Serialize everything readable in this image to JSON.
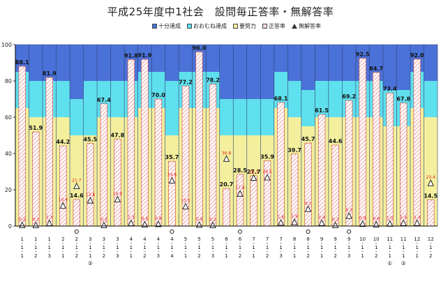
{
  "title": "平成25年度中1社会　設問毎正答率・無解答率",
  "legend": [
    {
      "label": "十分達成",
      "color": "#4a72d8",
      "kind": "box"
    },
    {
      "label": "おおむね達成",
      "color": "#5fe0ee",
      "kind": "box"
    },
    {
      "label": "要努力",
      "color": "#f3ef9d",
      "kind": "box"
    },
    {
      "label": "正答率",
      "color": "#f0c8c8",
      "kind": "hatch"
    },
    {
      "label": "無解答率",
      "color": "#333333",
      "kind": "triangle"
    }
  ],
  "chart_data": {
    "type": "bar",
    "ylim": [
      0,
      100
    ],
    "yticks": [
      0,
      20,
      40,
      60,
      80,
      100
    ],
    "categories": [
      {
        "lines": [
          "1",
          "1",
          "1"
        ],
        "circle": false,
        "sub": null
      },
      {
        "lines": [
          "1",
          "1",
          "2"
        ],
        "circle": false,
        "sub": null
      },
      {
        "lines": [
          "1",
          "1",
          "3"
        ],
        "circle": false,
        "sub": null
      },
      {
        "lines": [
          "2",
          "1",
          "1"
        ],
        "circle": false,
        "sub": null
      },
      {
        "lines": [
          "2",
          "1",
          "2"
        ],
        "circle": true,
        "sub": null
      },
      {
        "lines": [
          "3",
          "1",
          "1"
        ],
        "circle": false,
        "sub": "②"
      },
      {
        "lines": [
          "3",
          "1",
          "2"
        ],
        "circle": false,
        "sub": null
      },
      {
        "lines": [
          "3",
          "1",
          "3"
        ],
        "circle": false,
        "sub": null
      },
      {
        "lines": [
          "4",
          "1",
          "1"
        ],
        "circle": false,
        "sub": null
      },
      {
        "lines": [
          "4",
          "1",
          "2"
        ],
        "circle": false,
        "sub": null
      },
      {
        "lines": [
          "4",
          "1",
          "3"
        ],
        "circle": false,
        "sub": null
      },
      {
        "lines": [
          "4",
          "1",
          "4"
        ],
        "circle": true,
        "sub": null
      },
      {
        "lines": [
          "5",
          "1",
          "1"
        ],
        "circle": false,
        "sub": null
      },
      {
        "lines": [
          "5",
          "1",
          "2"
        ],
        "circle": false,
        "sub": null
      },
      {
        "lines": [
          "5",
          "1",
          "3"
        ],
        "circle": false,
        "sub": null
      },
      {
        "lines": [
          "6",
          "1",
          "1"
        ],
        "circle": false,
        "sub": null
      },
      {
        "lines": [
          "6",
          "1",
          "2"
        ],
        "circle": true,
        "sub": null
      },
      {
        "lines": [
          "7",
          "1",
          "1"
        ],
        "circle": false,
        "sub": null
      },
      {
        "lines": [
          "7",
          "1",
          "2"
        ],
        "circle": false,
        "sub": null
      },
      {
        "lines": [
          "7",
          "1",
          "3"
        ],
        "circle": false,
        "sub": null
      },
      {
        "lines": [
          "8",
          "1",
          "1"
        ],
        "circle": false,
        "sub": null
      },
      {
        "lines": [
          "8",
          "1",
          "2"
        ],
        "circle": true,
        "sub": null
      },
      {
        "lines": [
          "9",
          "1",
          "1"
        ],
        "circle": false,
        "sub": null
      },
      {
        "lines": [
          "9",
          "1",
          "2"
        ],
        "circle": false,
        "sub": null
      },
      {
        "lines": [
          "9",
          "1",
          "3"
        ],
        "circle": true,
        "sub": null
      },
      {
        "lines": [
          "10",
          "1",
          "1"
        ],
        "circle": false,
        "sub": null
      },
      {
        "lines": [
          "10",
          "1",
          "2"
        ],
        "circle": false,
        "sub": null
      },
      {
        "lines": [
          "11",
          "1",
          "1"
        ],
        "circle": false,
        "sub": "①"
      },
      {
        "lines": [
          "11",
          "1",
          "1"
        ],
        "circle": false,
        "sub": "②"
      },
      {
        "lines": [
          "12",
          "1",
          "1"
        ],
        "circle": false,
        "sub": null
      },
      {
        "lines": [
          "12",
          "1",
          "2"
        ],
        "circle": false,
        "sub": null
      }
    ],
    "bands": [
      {
        "yellow": 65,
        "cyan": 85
      },
      {
        "yellow": 60,
        "cyan": 80
      },
      {
        "yellow": 60,
        "cyan": 80
      },
      {
        "yellow": 60,
        "cyan": 80
      },
      {
        "yellow": 50,
        "cyan": 70
      },
      {
        "yellow": 50,
        "cyan": 80
      },
      {
        "yellow": 60,
        "cyan": 80
      },
      {
        "yellow": 60,
        "cyan": 80
      },
      {
        "yellow": 60,
        "cyan": 80
      },
      {
        "yellow": 65,
        "cyan": 85
      },
      {
        "yellow": 65,
        "cyan": 85
      },
      {
        "yellow": 50,
        "cyan": 80
      },
      {
        "yellow": 65,
        "cyan": 85
      },
      {
        "yellow": 65,
        "cyan": 85
      },
      {
        "yellow": 65,
        "cyan": 85
      },
      {
        "yellow": 50,
        "cyan": 70
      },
      {
        "yellow": 50,
        "cyan": 70
      },
      {
        "yellow": 50,
        "cyan": 70
      },
      {
        "yellow": 50,
        "cyan": 70
      },
      {
        "yellow": 65,
        "cyan": 85
      },
      {
        "yellow": 60,
        "cyan": 80
      },
      {
        "yellow": 55,
        "cyan": 75
      },
      {
        "yellow": 60,
        "cyan": 80
      },
      {
        "yellow": 60,
        "cyan": 80
      },
      {
        "yellow": 60,
        "cyan": 80
      },
      {
        "yellow": 60,
        "cyan": 80
      },
      {
        "yellow": 60,
        "cyan": 80
      },
      {
        "yellow": 55,
        "cyan": 75
      },
      {
        "yellow": 55,
        "cyan": 75
      },
      {
        "yellow": 65,
        "cyan": 85
      },
      {
        "yellow": 60,
        "cyan": 80
      }
    ],
    "series": [
      {
        "name": "正答率",
        "values": [
          88.1,
          51.9,
          81.9,
          44.2,
          14.6,
          45.5,
          67.4,
          47.8,
          91.8,
          91.9,
          70.0,
          35.7,
          77.2,
          96.0,
          78.2,
          20.7,
          28.5,
          27.7,
          35.9,
          68.1,
          39.7,
          45.7,
          61.5,
          44.6,
          69.2,
          92.5,
          84.7,
          73.4,
          67.8,
          92.0,
          14.5
        ]
      },
      {
        "name": "無解答率",
        "values": [
          0.2,
          0.2,
          1.3,
          10.9,
          21.7,
          13.8,
          0.2,
          14.4,
          1.3,
          0.6,
          0.8,
          24.8,
          10.5,
          0.4,
          0.2,
          36.8,
          17.6,
          26.3,
          26.5,
          1.6,
          1.9,
          9.1,
          1.4,
          0.2,
          5.3,
          0.9,
          0.6,
          1.0,
          1.4,
          1.4,
          23.4
        ]
      }
    ],
    "value_labels": [
      "88.1",
      "51.9",
      "81.9",
      "44.2",
      "14.6",
      "45.5",
      "67.4",
      "47.8",
      "91.8",
      "91.9",
      "70.0",
      "35.7",
      "77.2",
      "96.0",
      "78.2",
      "20.7",
      "28.5",
      "27.7",
      "35.9",
      "68.1",
      "39.7",
      "45.7",
      "61.5",
      "44.6",
      "69.2",
      "92.5",
      "84.7",
      "73.4",
      "67.8",
      "92.0",
      "14.5"
    ],
    "nr_labels": [
      "0.2",
      "0.2",
      "1.3",
      "10.9",
      "21.7",
      "13.8",
      "0.2",
      "14.4",
      "1.3",
      "0.6",
      "0.8",
      "24.8",
      "10.5",
      "0.4",
      "0.2",
      "36.8",
      "17.6",
      "26.3",
      "26.5",
      "1.6",
      "1.9",
      "9.1",
      "1.4",
      "0.2",
      "5.3",
      "0.9",
      "0.6",
      "1.0",
      "1.4",
      "1.4",
      "23.4"
    ]
  }
}
